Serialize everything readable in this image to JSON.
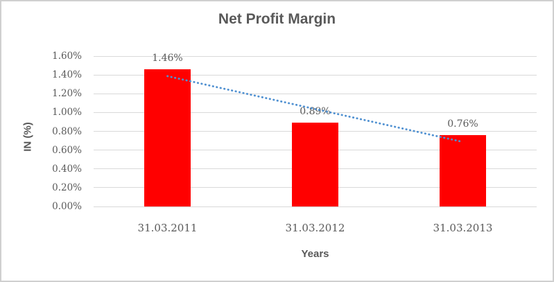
{
  "chart_data": {
    "type": "bar",
    "title": "Net Profit Margin",
    "xlabel": "Years",
    "ylabel": "IN (%)",
    "categories": [
      "31.03.2011",
      "31.03.2012",
      "31.03.2013"
    ],
    "values": [
      1.46,
      0.89,
      0.76
    ],
    "data_labels": [
      "1.46%",
      "0.89%",
      "0.76%"
    ],
    "ylim": [
      0,
      1.6
    ],
    "ytick_step": 0.2,
    "yticks": [
      "0.00%",
      "0.20%",
      "0.40%",
      "0.60%",
      "0.80%",
      "1.00%",
      "1.20%",
      "1.40%",
      "1.60%"
    ],
    "grid": true,
    "legend": "none",
    "bar_color": "#ff0000",
    "gridline_color": "#d9d9d9",
    "text_color": "#595959",
    "trendline": {
      "type": "linear",
      "style": "dotted",
      "color": "#4f90d1",
      "fitted_values": [
        1.387,
        1.037,
        0.687
      ]
    }
  }
}
